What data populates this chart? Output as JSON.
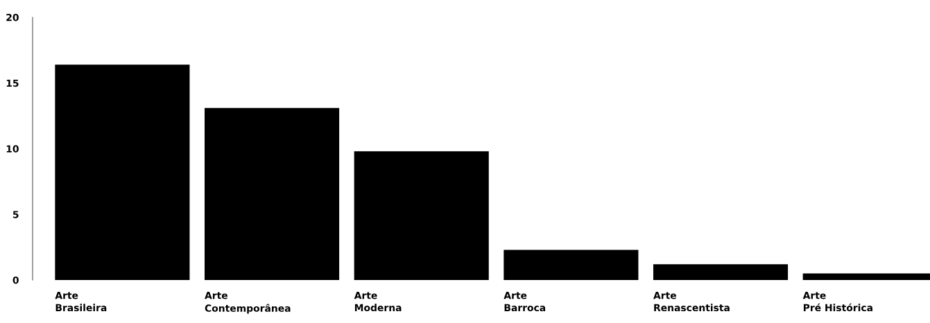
{
  "chart_data": {
    "type": "bar",
    "categories": [
      "Arte\nBrasileira",
      "Arte\nContemporânea",
      "Arte\nModerna",
      "Arte\nBarroca",
      "Arte\nRenascentista",
      "Arte\nPré Histórica"
    ],
    "values": [
      16.4,
      13.1,
      9.8,
      2.3,
      1.2,
      0.5
    ],
    "color": "#000000",
    "ylim": [
      0,
      20
    ],
    "yticks": [
      0,
      5,
      10,
      15,
      20
    ],
    "grid": false
  }
}
